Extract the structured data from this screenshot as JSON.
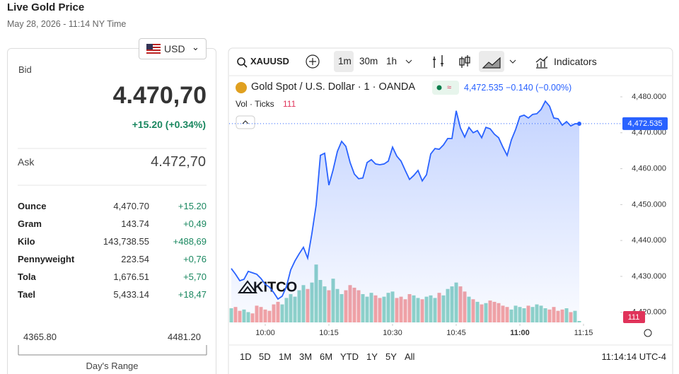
{
  "header": {
    "title": "Live Gold Price",
    "subtitle": "May 28, 2026 - 11:14 NY Time"
  },
  "currency": "USD",
  "bid": {
    "label": "Bid",
    "value": "4.470,70",
    "change": "+15.20 (+0.34%)"
  },
  "ask": {
    "label": "Ask",
    "value": "4.472,70"
  },
  "units": [
    [
      "Ounce",
      "4,470.70",
      "+15.20"
    ],
    [
      "Gram",
      "143.74",
      "+0,49"
    ],
    [
      "Kilo",
      "143,738.55",
      "+488,69"
    ],
    [
      "Pennyweight",
      "223.54",
      "+0,76"
    ],
    [
      "Tola",
      "1,676.51",
      "+5,70"
    ],
    [
      "Tael",
      "5,433.14",
      "+18,47"
    ]
  ],
  "range": {
    "low": "4365.80",
    "high": "4481.20",
    "label": "Day's Range"
  },
  "toolbar": {
    "symbol": "XAUUSD",
    "intervals": [
      "1m",
      "30m",
      "1h"
    ],
    "indicators": "Indicators"
  },
  "ranges": [
    "1D",
    "5D",
    "1M",
    "3M",
    "6M",
    "YTD",
    "1Y",
    "5Y",
    "All"
  ],
  "clock": "11:14:14 UTC-4",
  "watermark": "KITCO",
  "chart_data": {
    "type": "line",
    "title": "Gold Spot / U.S. Dollar · 1 · OANDA",
    "quote": "4,472.535 −0.140 (−0.00%)",
    "volume_title": "Vol · Ticks",
    "volume_last": "111",
    "categories": [
      null,
      null,
      null,
      null,
      null,
      null,
      null,
      null,
      "10:00",
      null,
      null,
      null,
      null,
      null,
      null,
      null,
      null,
      null,
      null,
      null,
      null,
      null,
      null,
      "10:15",
      null,
      null,
      null,
      null,
      null,
      null,
      null,
      null,
      null,
      null,
      null,
      null,
      null,
      null,
      "10:30",
      null,
      null,
      null,
      null,
      null,
      null,
      null,
      null,
      null,
      null,
      null,
      null,
      null,
      null,
      "10:45",
      null,
      null,
      null,
      null,
      null,
      null,
      null,
      null,
      null,
      null,
      null,
      null,
      null,
      null,
      "11:00",
      null,
      null,
      null,
      null,
      null,
      null,
      null,
      null,
      null,
      null,
      null,
      null,
      null,
      null,
      "11:15"
    ],
    "series": [
      {
        "color": "#2962ff",
        "values": [
          4432.2,
          4430.6,
          4428.8,
          4429.2,
          4431.4,
          4431.0,
          4430.6,
          4429.4,
          4427.8,
          4427.0,
          4425.5,
          4423.7,
          4424.5,
          4427.2,
          4431.8,
          4434.3,
          4436.3,
          4438.1,
          4435.1,
          4442.0,
          4449.9,
          4463.7,
          4464.3,
          4455.4,
          4459.7,
          4464.8,
          4467.6,
          4466.2,
          4461.7,
          4458.5,
          4457.2,
          4457.4,
          4461.7,
          4462.5,
          4461.3,
          4461.1,
          4461.3,
          4462.1,
          4466.0,
          4463.5,
          4462.1,
          4459.5,
          4457.0,
          4458.1,
          4459.5,
          4456.6,
          4458.3,
          4464.1,
          4465.6,
          4465.4,
          4466.6,
          4468.4,
          4468.4,
          4476.1,
          4471.3,
          4468.8,
          4471.5,
          4470.0,
          4470.6,
          4468.6,
          4471.5,
          4471.1,
          4469.6,
          4468.6,
          4466.0,
          4463.7,
          4468.0,
          4470.9,
          4474.5,
          4474.9,
          4474.1,
          4475.1,
          4475.3,
          4476.5,
          4478.8,
          4477.4,
          4474.1,
          4473.9,
          4472.1,
          4473.1,
          4471.9,
          4472.5,
          4472.5,
          null
        ]
      },
      {
        "axis": "y2",
        "up_color": "#8fd3c8",
        "down_color": "#f5a3a3",
        "values": [
          1100,
          1200,
          900,
          1000,
          800,
          700,
          1300,
          1200,
          1000,
          900,
          1400,
          1600,
          1400,
          1900,
          2200,
          2000,
          2500,
          2900,
          2600,
          3100,
          4500,
          3300,
          2800,
          2500,
          3400,
          2600,
          2200,
          2500,
          2900,
          2700,
          2500,
          2200,
          2000,
          2300,
          2100,
          1900,
          2000,
          2300,
          2400,
          1900,
          2000,
          1800,
          2200,
          2100,
          1900,
          1800,
          2000,
          2100,
          1900,
          2300,
          2100,
          2600,
          2800,
          3100,
          2800,
          2400,
          2000,
          1800,
          1600,
          1400,
          1500,
          1700,
          1600,
          1500,
          1300,
          1200,
          1000,
          1300,
          1200,
          1100,
          1300,
          1200,
          1400,
          1300,
          1100,
          1000,
          1200,
          900,
          1000,
          1100,
          800,
          900,
          111,
          null
        ]
      }
    ],
    "ylim": [
      4416.8,
      4485.7
    ],
    "yticks": [
      {
        "value": 4420,
        "label": "4,420.000"
      },
      {
        "value": 4430,
        "label": "4,430.000"
      },
      {
        "value": 4440,
        "label": "4,440.000"
      },
      {
        "value": 4450,
        "label": "4,450.000"
      },
      {
        "value": 4460,
        "label": "4,460.000"
      },
      {
        "value": 4470,
        "label": "4,470.000"
      },
      {
        "value": 4480,
        "label": "4,480.000"
      }
    ],
    "y2lim": [
      0,
      6600
    ],
    "last_price": {
      "value": 4472.535,
      "label": "4,472.535"
    },
    "grid": false
  }
}
